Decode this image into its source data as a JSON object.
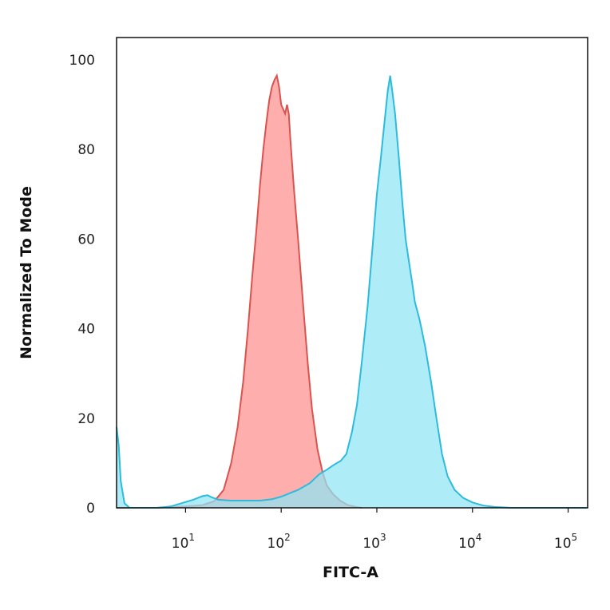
{
  "chart_data": {
    "type": "area",
    "xlabel": "FITC-A",
    "ylabel": "Normalized To Mode",
    "x_scale": "log",
    "xlim": [
      1.9,
      160000
    ],
    "ylim": [
      0,
      105
    ],
    "y_ticks": [
      0,
      20,
      40,
      60,
      80,
      100
    ],
    "x_ticks": [
      {
        "base": "10",
        "exp": "1",
        "value": 10
      },
      {
        "base": "10",
        "exp": "2",
        "value": 100
      },
      {
        "base": "10",
        "exp": "3",
        "value": 1000
      },
      {
        "base": "10",
        "exp": "4",
        "value": 10000
      },
      {
        "base": "10",
        "exp": "5",
        "value": 100000
      }
    ],
    "grid": false,
    "legend": "none",
    "series": [
      {
        "color_fill": "#ff8f8f",
        "color_line": "#d9534f",
        "points": [
          [
            1.9,
            0
          ],
          [
            5,
            0
          ],
          [
            10,
            0.3
          ],
          [
            15,
            0.6
          ],
          [
            20,
            1.5
          ],
          [
            25,
            4
          ],
          [
            30,
            10
          ],
          [
            35,
            18
          ],
          [
            40,
            28
          ],
          [
            45,
            40
          ],
          [
            50,
            52
          ],
          [
            55,
            62
          ],
          [
            60,
            72
          ],
          [
            65,
            80
          ],
          [
            70,
            86
          ],
          [
            75,
            91
          ],
          [
            80,
            94
          ],
          [
            85,
            95.5
          ],
          [
            90,
            96.5
          ],
          [
            95,
            94
          ],
          [
            100,
            90
          ],
          [
            110,
            88
          ],
          [
            115,
            90
          ],
          [
            120,
            88
          ],
          [
            125,
            82
          ],
          [
            135,
            72
          ],
          [
            150,
            60
          ],
          [
            170,
            45
          ],
          [
            190,
            32
          ],
          [
            210,
            22
          ],
          [
            240,
            13
          ],
          [
            270,
            8
          ],
          [
            300,
            5
          ],
          [
            350,
            3
          ],
          [
            420,
            1.5
          ],
          [
            500,
            0.6
          ],
          [
            600,
            0.2
          ],
          [
            700,
            0
          ]
        ]
      },
      {
        "color_fill": "#8fe6f5",
        "color_line": "#2cbbdd",
        "points": [
          [
            1.9,
            18
          ],
          [
            2.0,
            14
          ],
          [
            2.1,
            6
          ],
          [
            2.3,
            1
          ],
          [
            2.6,
            0
          ],
          [
            3,
            0
          ],
          [
            5,
            0
          ],
          [
            7,
            0.3
          ],
          [
            9,
            1
          ],
          [
            12,
            1.8
          ],
          [
            15,
            2.6
          ],
          [
            17,
            2.8
          ],
          [
            19,
            2.3
          ],
          [
            22,
            1.8
          ],
          [
            30,
            1.6
          ],
          [
            40,
            1.6
          ],
          [
            60,
            1.6
          ],
          [
            80,
            1.9
          ],
          [
            100,
            2.5
          ],
          [
            150,
            4
          ],
          [
            200,
            5.5
          ],
          [
            250,
            7.5
          ],
          [
            300,
            8.5
          ],
          [
            350,
            9.5
          ],
          [
            420,
            10.5
          ],
          [
            480,
            12
          ],
          [
            550,
            17
          ],
          [
            620,
            23
          ],
          [
            700,
            33
          ],
          [
            800,
            45
          ],
          [
            900,
            58
          ],
          [
            1000,
            70
          ],
          [
            1100,
            78
          ],
          [
            1200,
            86
          ],
          [
            1300,
            93
          ],
          [
            1380,
            96.5
          ],
          [
            1450,
            93
          ],
          [
            1550,
            88
          ],
          [
            1700,
            78
          ],
          [
            1850,
            68
          ],
          [
            2000,
            60
          ],
          [
            2200,
            54
          ],
          [
            2350,
            50
          ],
          [
            2500,
            46
          ],
          [
            2800,
            42
          ],
          [
            3200,
            36
          ],
          [
            3700,
            28
          ],
          [
            4200,
            20
          ],
          [
            4800,
            12
          ],
          [
            5500,
            7
          ],
          [
            6500,
            4
          ],
          [
            8000,
            2.2
          ],
          [
            10000,
            1.2
          ],
          [
            13000,
            0.5
          ],
          [
            17000,
            0.2
          ],
          [
            25000,
            0
          ],
          [
            160000,
            0
          ]
        ]
      }
    ]
  }
}
